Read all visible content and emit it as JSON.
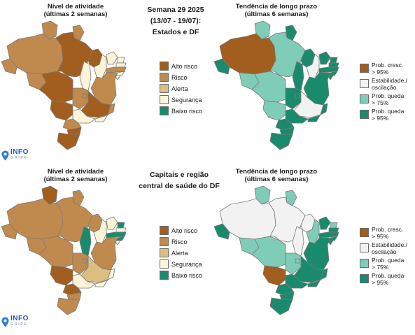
{
  "colors": {
    "alto_risco": "#a15e1e",
    "risco": "#c08a4e",
    "alerta": "#dcbd82",
    "seguranca": "#fbf4d8",
    "baixo_risco": "#1a8a6c",
    "cresc": "#a15e1e",
    "estab": "#f2f2f2",
    "queda75": "#7fccb8",
    "queda95": "#1a8a6c"
  },
  "top": {
    "activity_title": "Nível de atividade\n(últimas 2 semanas)",
    "trend_title": "Tendência de longo prazo\n(últimas 6 semanas)",
    "center_title": "Semana 29 2025\n(13/07 - 19/07):\nEstados e DF"
  },
  "bottom": {
    "activity_title": "Nível de atividade\n(últimas 2 semanas)",
    "trend_title": "Tendência de longo prazo\n(últimas 6 semanas)",
    "center_title": "Capitais e região\ncentral de saúde do DF"
  },
  "activity_legend": [
    {
      "label": "Alto risco",
      "color": "#a15e1e"
    },
    {
      "label": "Risco",
      "color": "#c08a4e"
    },
    {
      "label": "Alerta",
      "color": "#dcbd82"
    },
    {
      "label": "Segurança",
      "color": "#fbf4d8"
    },
    {
      "label": "Baixo risco",
      "color": "#1a8a6c"
    }
  ],
  "trend_legend": [
    {
      "label": "Prob. cresc.\n> 95%",
      "color": "#a15e1e"
    },
    {
      "label": "Estabilidade./\noscilação",
      "color": "#f2f2f2"
    },
    {
      "label": "Prob. queda\n> 75%",
      "color": "#7fccb8"
    },
    {
      "label": "Prob. queda\n> 95%",
      "color": "#1a8a6c"
    }
  ],
  "logo": {
    "name": "INFO",
    "sub": "GRIPE"
  },
  "maps": {
    "top_activity": {
      "RR": "risco",
      "AP": "risco",
      "AM": "risco",
      "PA": "alto_risco",
      "AC": "risco",
      "RO": "risco",
      "MT": "alto_risco",
      "TO": "seguranca",
      "MA": "alto_risco",
      "PI": "seguranca",
      "CE": "seguranca",
      "RN": "seguranca",
      "PB": "seguranca",
      "PE": "risco",
      "AL": "seguranca",
      "SE": "seguranca",
      "BA": "risco",
      "GO": "risco",
      "DF": "risco",
      "MG": "alto_risco",
      "ES": "risco",
      "MS": "alto_risco",
      "SP": "seguranca",
      "RJ": "seguranca",
      "PR": "risco",
      "SC": "alto_risco",
      "RS": "alto_risco"
    },
    "top_trend": {
      "RR": "queda75",
      "AP": "queda95",
      "AM": "cresc",
      "PA": "queda75",
      "AC": "queda95",
      "RO": "queda75",
      "MT": "queda75",
      "TO": "queda95",
      "MA": "queda95",
      "PI": "estab",
      "CE": "queda95",
      "RN": "queda95",
      "PB": "queda95",
      "PE": "queda95",
      "AL": "queda95",
      "SE": "queda95",
      "BA": "queda95",
      "GO": "queda95",
      "DF": "queda95",
      "MG": "estab",
      "ES": "queda95",
      "MS": "queda75",
      "SP": "queda95",
      "RJ": "queda95",
      "PR": "queda95",
      "SC": "queda95",
      "RS": "queda95"
    },
    "bottom_activity": {
      "RR": "alto_risco",
      "AP": "risco",
      "AM": "risco",
      "PA": "risco",
      "AC": "risco",
      "RO": "risco",
      "MT": "risco",
      "TO": "baixo_risco",
      "MA": "risco",
      "PI": "seguranca",
      "CE": "seguranca",
      "RN": "baixo_risco",
      "PB": "seguranca",
      "PE": "baixo_risco",
      "AL": "baixo_risco",
      "SE": "seguranca",
      "BA": "risco",
      "GO": "risco",
      "DF": "risco",
      "MG": "alerta",
      "ES": "seguranca",
      "MS": "alto_risco",
      "SP": "seguranca",
      "RJ": "seguranca",
      "PR": "alto_risco",
      "SC": "risco",
      "RS": "risco"
    },
    "bottom_trend": {
      "RR": "queda75",
      "AP": "queda75",
      "AM": "estab",
      "PA": "estab",
      "AC": "queda95",
      "RO": "queda75",
      "MT": "queda75",
      "TO": "estab",
      "MA": "estab",
      "PI": "queda75",
      "CE": "queda95",
      "RN": "queda75",
      "PB": "queda95",
      "PE": "queda95",
      "AL": "queda95",
      "SE": "queda95",
      "BA": "queda95",
      "GO": "queda75",
      "DF": "queda75",
      "MG": "queda95",
      "ES": "queda95",
      "MS": "cresc",
      "SP": "queda95",
      "RJ": "queda95",
      "PR": "queda95",
      "SC": "queda95",
      "RS": "queda95"
    }
  }
}
